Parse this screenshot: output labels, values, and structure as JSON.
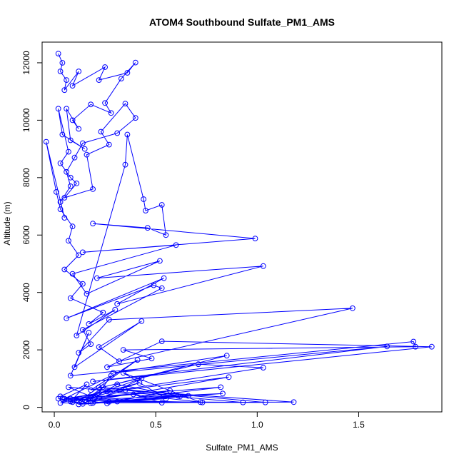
{
  "chart_data": {
    "type": "scatter",
    "title": "ATOM4 Southbound Sulfate_PM1_AMS",
    "xlabel": "Sulfate_PM1_AMS",
    "ylabel": "Altitude (m)",
    "xlim": [
      -0.06,
      1.91
    ],
    "ylim": [
      -160,
      12720
    ],
    "xticks": [
      0,
      0.5,
      1,
      1.5
    ],
    "xtick_labels": [
      "0.0",
      "0.5",
      "1.0",
      "1.5"
    ],
    "yticks": [
      0,
      2000,
      4000,
      6000,
      8000,
      10000,
      12000
    ],
    "ytick_labels": [
      "0",
      "2000",
      "4000",
      "6000",
      "8000",
      "10000",
      "12000"
    ],
    "grid": false,
    "legend": "none",
    "marker": "open-circle",
    "connect_points": true,
    "color": "#0000ff",
    "series": [
      {
        "x": [
          0.02,
          0.04,
          0.03,
          0.06,
          0.05,
          0.12,
          0.09,
          0.25,
          0.22,
          0.36,
          0.4,
          0.33,
          0.25,
          0.28,
          0.18,
          0.09,
          0.12,
          0.06,
          0.08,
          0.15,
          0.04,
          0.02,
          0.07,
          0.03,
          0.08,
          0.11,
          0.05,
          0.19,
          0.16,
          0.27,
          0.23,
          0.35,
          0.4,
          0.31,
          0.14,
          0.1,
          0.06,
          0.08,
          0.03,
          0.05,
          -0.04,
          0.01,
          0.03,
          0.09,
          0.07,
          0.12,
          0.05,
          0.14,
          0.08,
          0.24,
          0.17,
          0.3,
          0.11,
          0.35,
          0.36,
          0.44,
          0.45,
          0.53,
          0.55,
          0.46,
          0.19,
          0.99,
          0.14,
          0.6,
          0.09,
          0.16,
          0.52,
          0.21,
          1.03,
          0.31,
          0.54,
          0.06,
          0.49,
          0.53,
          0.14,
          0.18,
          0.12,
          0.27,
          1.47,
          0.32,
          0.22,
          0.43,
          0.1,
          0.17,
          0.08,
          1.77,
          1.78,
          0.34,
          0.48,
          0.26,
          0.53,
          1.86,
          0.19,
          1.64,
          0.29,
          0.85,
          0.24,
          0.2,
          0.12,
          0.41,
          0.18,
          0.71,
          1.03,
          0.05,
          0.28,
          0.22,
          0.86,
          0.16,
          0.31,
          0.61,
          0.19,
          0.82,
          0.08,
          0.26,
          0.72,
          0.34,
          0.55,
          0.12,
          0.35,
          1.18,
          0.03,
          0.42,
          0.15,
          0.83,
          0.31,
          1.04,
          0.22,
          0.62,
          0.14,
          0.02,
          0.09,
          0.43,
          0.18,
          0.66,
          0.27,
          0.93,
          0.07,
          0.2,
          0.53,
          0.39,
          0.04,
          0.73,
          0.11,
          0.57,
          0.26,
          0.03,
          0.16,
          0.08,
          0.21
        ],
        "y": [
          12320,
          12000,
          11700,
          11400,
          11050,
          11700,
          11200,
          11850,
          11400,
          11650,
          12010,
          11450,
          10600,
          10250,
          10550,
          10000,
          9700,
          10400,
          9300,
          9000,
          9500,
          10400,
          8900,
          8500,
          8000,
          7800,
          7300,
          7600,
          8800,
          9150,
          9600,
          10580,
          10080,
          9550,
          9200,
          8700,
          8200,
          7700,
          7150,
          6600,
          9250,
          7500,
          6900,
          6300,
          5800,
          5300,
          4800,
          4300,
          3800,
          3300,
          2900,
          3400,
          2500,
          8450,
          9500,
          7250,
          6850,
          7050,
          6000,
          6250,
          6400,
          5880,
          5400,
          5650,
          4650,
          3950,
          5100,
          4500,
          4920,
          3600,
          4500,
          3100,
          4250,
          4150,
          2700,
          2200,
          1900,
          3050,
          3450,
          1600,
          2100,
          3000,
          1400,
          2600,
          1100,
          2290,
          2110,
          2000,
          1700,
          1400,
          2300,
          2110,
          900,
          2120,
          1200,
          1800,
          700,
          400,
          200,
          1650,
          600,
          1500,
          1380,
          300,
          1100,
          500,
          1050,
          200,
          800,
          400,
          150,
          700,
          300,
          550,
          180,
          1200,
          300,
          100,
          600,
          180,
          150,
          850,
          250,
          480,
          200,
          170,
          700,
          380,
          120,
          300,
          180,
          1000,
          140,
          400,
          190,
          170,
          700,
          320,
          160,
          450,
          280,
          170,
          250,
          580,
          130,
          380,
          800,
          200,
          450
        ]
      }
    ]
  }
}
